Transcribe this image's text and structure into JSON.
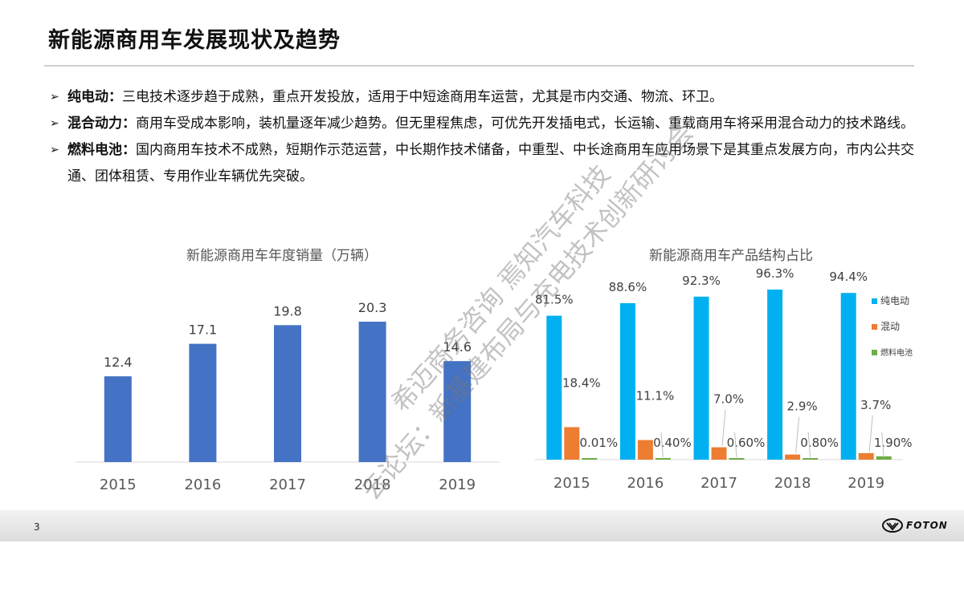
{
  "slide": {
    "title": "新能源商用车发展现状及趋势",
    "page_number": "3",
    "logo_text": "FOTON"
  },
  "bullets": [
    {
      "label": "纯电动：",
      "text": "三电技术逐步趋于成熟，重点开发投放，适用于中短途商用车运营，尤其是市内交通、物流、环卫。"
    },
    {
      "label": "混合动力：",
      "text": "商用车受成本影响，装机量逐年减少趋势。但无里程焦虑，可优先开发插电式，长运输、重载商用车将采用混合动力的技术路线。"
    },
    {
      "label": "燃料电池：",
      "text": "国内商用车技术不成熟，短期作示范运营，中长期作技术储备，中重型、中长途商用车应用场景下是其重点发展方向，市内公共交通、团体租赁、专用作业车辆优先突破。"
    }
  ],
  "watermark": {
    "line1": "希迈商务咨询 焉知汽车科技",
    "line2": "云论坛：新基建布局与充电技术创新研讨会"
  },
  "chart_data": [
    {
      "type": "bar",
      "title": "新能源商用车年度销量（万辆）",
      "categories": [
        "2015",
        "2016",
        "2017",
        "2018",
        "2019"
      ],
      "values": [
        12.4,
        17.1,
        19.8,
        20.3,
        14.6
      ],
      "value_labels": [
        "12.4",
        "17.1",
        "19.8",
        "20.3",
        "14.6"
      ],
      "ylim": [
        0,
        21
      ],
      "color": "#4472c4"
    },
    {
      "type": "bar",
      "title": "新能源商用车产品结构占比",
      "categories": [
        "2015",
        "2016",
        "2017",
        "2018",
        "2019"
      ],
      "ylim": [
        0,
        100
      ],
      "legend_position": "right",
      "series": [
        {
          "name": "纯电动",
          "color": "#00b0f0",
          "values": [
            81.5,
            88.6,
            92.3,
            96.3,
            94.4
          ],
          "labels": [
            "81.5%",
            "88.6%",
            "92.3%",
            "96.3%",
            "94.4%"
          ]
        },
        {
          "name": "混动",
          "color": "#ed7d31",
          "values": [
            18.4,
            11.1,
            7.0,
            2.9,
            3.7
          ],
          "labels": [
            "18.4%",
            "11.1%",
            "7.0%",
            "2.9%",
            "3.7%"
          ]
        },
        {
          "name": "燃料电池",
          "color": "#70ad47",
          "values": [
            0.01,
            0.4,
            0.6,
            0.8,
            1.9
          ],
          "labels": [
            "0.01%",
            "0.40%",
            "0.60%",
            "0.80%",
            "1.90%"
          ]
        }
      ]
    }
  ]
}
